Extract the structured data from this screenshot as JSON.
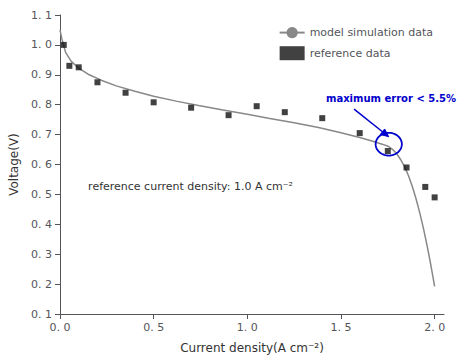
{
  "chart_data": {
    "type": "line",
    "xlabel": "Current density(A cm⁻²)",
    "ylabel": "Voltage(V)",
    "xlim": [
      0.0,
      2.05
    ],
    "ylim": [
      0.1,
      1.1
    ],
    "xticks": [
      {
        "value": 0.0,
        "label": "0. 0"
      },
      {
        "value": 0.5,
        "label": "0. 5"
      },
      {
        "value": 1.0,
        "label": "1. 0"
      },
      {
        "value": 1.5,
        "label": "1. 5"
      },
      {
        "value": 2.0,
        "label": "2. 0"
      }
    ],
    "yticks": [
      {
        "value": 0.1,
        "label": "0. 1"
      },
      {
        "value": 0.2,
        "label": "0. 2"
      },
      {
        "value": 0.3,
        "label": "0. 3"
      },
      {
        "value": 0.4,
        "label": "0. 4"
      },
      {
        "value": 0.5,
        "label": "0. 5"
      },
      {
        "value": 0.6,
        "label": "0. 6"
      },
      {
        "value": 0.7,
        "label": "0. 7"
      },
      {
        "value": 0.8,
        "label": "0. 8"
      },
      {
        "value": 0.9,
        "label": "0. 9"
      },
      {
        "value": 1.0,
        "label": "1. 0"
      },
      {
        "value": 1.1,
        "label": "1. 1"
      }
    ],
    "grid": false,
    "legend": "upper right",
    "series": [
      {
        "name": "model simulation data",
        "type": "line",
        "color": "#888888",
        "x": [
          0.0,
          0.01,
          0.03,
          0.06,
          0.1,
          0.15,
          0.22,
          0.3,
          0.4,
          0.5,
          0.62,
          0.74,
          0.87,
          1.0,
          1.12,
          1.25,
          1.38,
          1.5,
          1.6,
          1.67,
          1.72,
          1.755,
          1.78,
          1.8,
          1.82,
          1.84,
          1.86,
          1.88,
          1.9,
          1.92,
          1.94,
          1.96,
          1.98,
          2.0
        ],
        "values": [
          1.05,
          1.02,
          0.975,
          0.945,
          0.922,
          0.902,
          0.882,
          0.863,
          0.845,
          0.828,
          0.812,
          0.797,
          0.782,
          0.768,
          0.754,
          0.74,
          0.724,
          0.706,
          0.69,
          0.678,
          0.668,
          0.66,
          0.648,
          0.634,
          0.615,
          0.592,
          0.563,
          0.528,
          0.487,
          0.44,
          0.387,
          0.328,
          0.263,
          0.192
        ]
      },
      {
        "name": "reference data",
        "type": "scatter",
        "marker": "square",
        "color": "#111111",
        "x": [
          0.02,
          0.05,
          0.1,
          0.2,
          0.35,
          0.5,
          0.7,
          0.9,
          1.05,
          1.2,
          1.4,
          1.6,
          1.75,
          1.85,
          1.95,
          2.0
        ],
        "values": [
          1.0,
          0.93,
          0.925,
          0.875,
          0.84,
          0.808,
          0.79,
          0.765,
          0.795,
          0.775,
          0.755,
          0.705,
          0.645,
          0.59,
          0.525,
          0.49
        ]
      }
    ],
    "annotations": [
      {
        "text": "maximum error < 5.5%",
        "x": 1.42,
        "y": 0.805,
        "color": "#0000cc"
      },
      {
        "text": "reference current density: 1.0 A cm⁻²",
        "x": 0.15,
        "y": 0.525,
        "color": "#333333"
      }
    ],
    "circle": {
      "x": 1.755,
      "y": 0.668,
      "radius_x": 0.07,
      "radius_y": 0.038,
      "color": "#0000cc"
    },
    "arrow": {
      "from": [
        1.57,
        0.785
      ],
      "to": [
        1.755,
        0.693
      ],
      "color": "#0000cc"
    }
  }
}
